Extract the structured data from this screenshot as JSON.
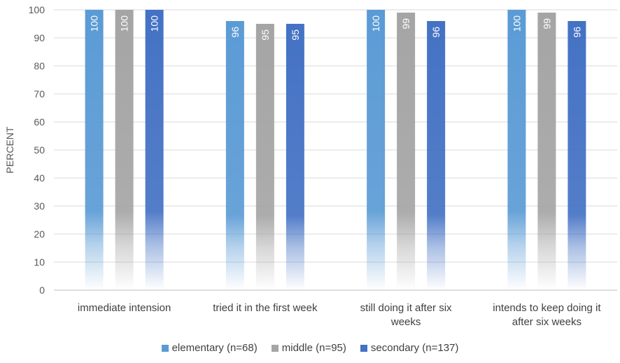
{
  "chart_data": {
    "type": "bar",
    "title": "",
    "ylabel": "PERCENT",
    "xlabel": "",
    "ylim": [
      0,
      100
    ],
    "yticks": [
      0,
      10,
      20,
      30,
      40,
      50,
      60,
      70,
      80,
      90,
      100
    ],
    "grid": true,
    "legend_position": "bottom",
    "categories": [
      [
        "immediate intension"
      ],
      [
        "tried it in the first week"
      ],
      [
        "still doing it after six",
        "weeks"
      ],
      [
        "intends to keep doing it",
        "after six weeks"
      ]
    ],
    "series": [
      {
        "name": "elementary (n=68)",
        "color": "#5b9bd5",
        "values": [
          100,
          96,
          100,
          100
        ]
      },
      {
        "name": "middle (n=95)",
        "color": "#a5a5a5",
        "values": [
          100,
          95,
          99,
          99
        ]
      },
      {
        "name": "secondary (n=137)",
        "color": "#4472c4",
        "values": [
          100,
          95,
          96,
          96
        ]
      }
    ]
  }
}
